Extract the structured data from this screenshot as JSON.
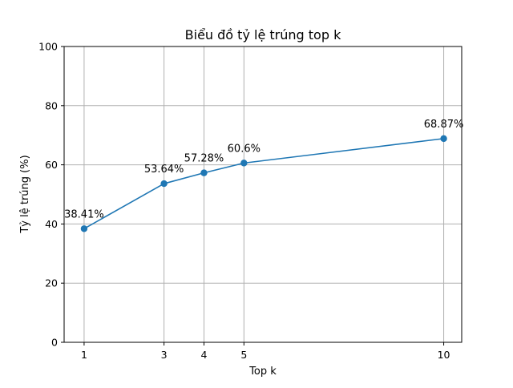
{
  "chart_data": {
    "type": "line",
    "title": "Biểu đồ tỷ lệ trúng top k",
    "xlabel": "Top k",
    "ylabel": "Tỷ lệ trúng (%)",
    "x": [
      1,
      3,
      4,
      5,
      10
    ],
    "x_ticks": [
      1,
      3,
      4,
      5,
      10
    ],
    "y_ticks": [
      0,
      20,
      40,
      60,
      80,
      100
    ],
    "ylim": [
      0,
      100
    ],
    "xlim": [
      0.5,
      10.45
    ],
    "grid": true,
    "series": [
      {
        "values": [
          38.41,
          53.64,
          57.28,
          60.6,
          68.87
        ],
        "color": "#1f77b4",
        "marker": "circle"
      }
    ],
    "data_labels": [
      "38.41%",
      "53.64%",
      "57.28%",
      "60.6%",
      "68.87%"
    ]
  }
}
